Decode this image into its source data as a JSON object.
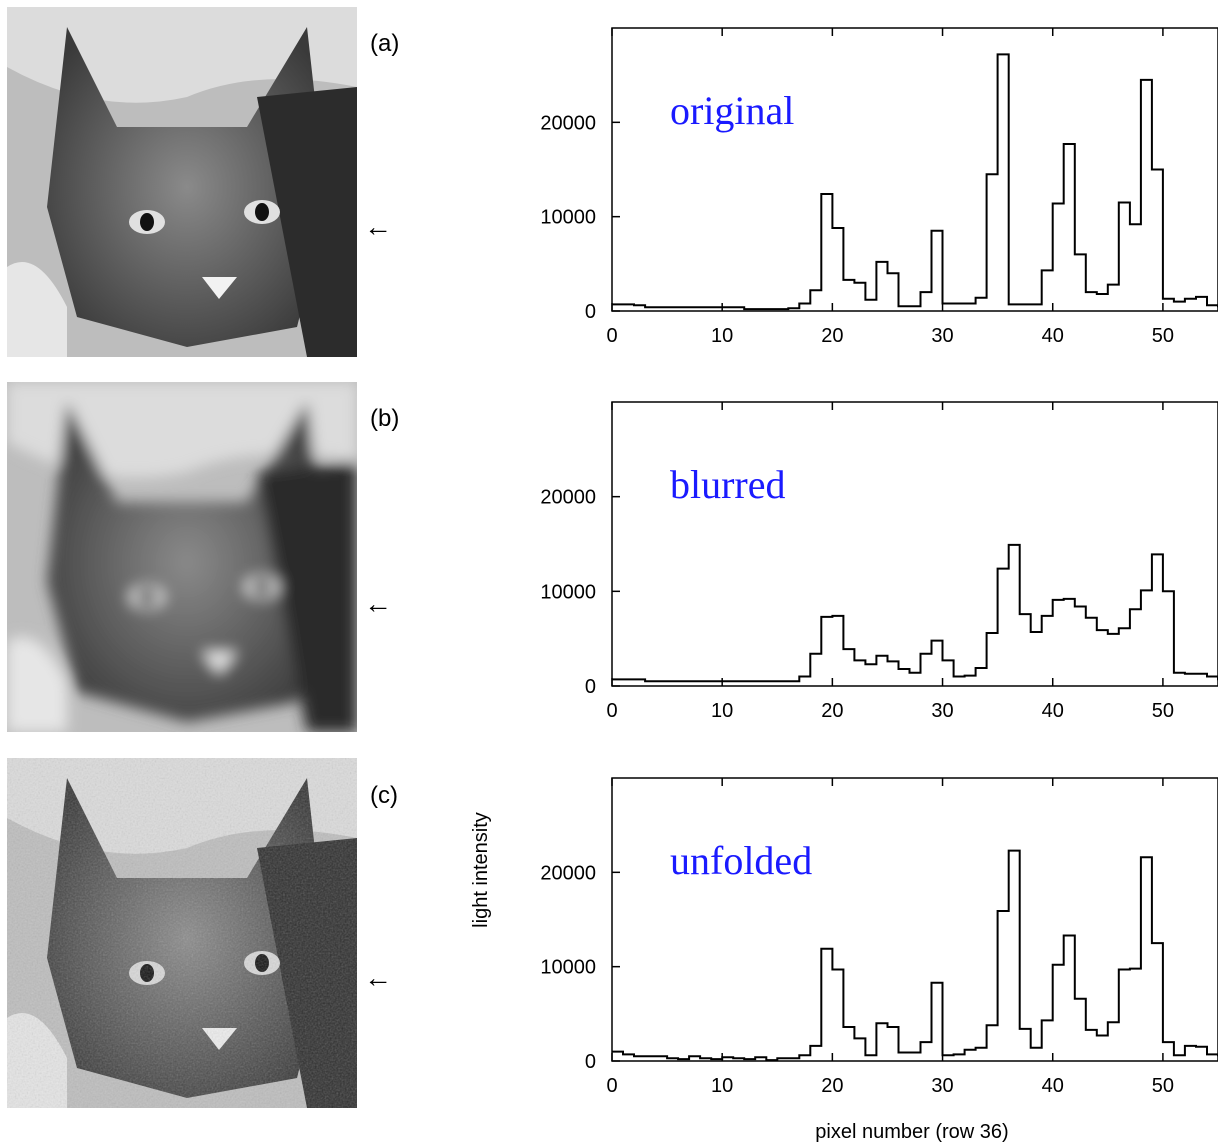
{
  "figure": {
    "ylabel": "light intensity",
    "xlabel": "pixel number (row 36)",
    "arrow_glyph": "←"
  },
  "chart_data": [
    {
      "type": "line",
      "step": true,
      "panel": "(a)",
      "annotation": "original",
      "x": [
        0,
        1,
        2,
        3,
        4,
        5,
        6,
        7,
        8,
        9,
        10,
        11,
        12,
        13,
        14,
        15,
        16,
        17,
        18,
        19,
        20,
        21,
        22,
        23,
        24,
        25,
        26,
        27,
        28,
        29,
        30,
        31,
        32,
        33,
        34,
        35,
        36,
        37,
        38,
        39,
        40,
        41,
        42,
        43,
        44,
        45,
        46,
        47,
        48,
        49,
        50,
        51,
        52,
        53,
        54,
        55
      ],
      "values": [
        700,
        700,
        600,
        400,
        400,
        400,
        400,
        400,
        400,
        400,
        400,
        400,
        200,
        200,
        200,
        200,
        300,
        800,
        2200,
        12400,
        8800,
        3300,
        3000,
        1200,
        5200,
        4000,
        500,
        500,
        2000,
        8500,
        800,
        800,
        800,
        1400,
        14500,
        27200,
        700,
        700,
        700,
        4300,
        11400,
        17700,
        6000,
        2000,
        1800,
        2800,
        11500,
        9200,
        24500,
        15000,
        1300,
        1000,
        1300,
        1500,
        600,
        400
      ],
      "xlim": [
        0,
        55
      ],
      "ylim": [
        0,
        30000
      ],
      "xticks": [
        "0",
        "10",
        "20",
        "30",
        "40",
        "50"
      ],
      "yticks": [
        "0",
        "10000",
        "20000"
      ]
    },
    {
      "type": "line",
      "step": true,
      "panel": "(b)",
      "annotation": "blurred",
      "x": [
        0,
        1,
        2,
        3,
        4,
        5,
        6,
        7,
        8,
        9,
        10,
        11,
        12,
        13,
        14,
        15,
        16,
        17,
        18,
        19,
        20,
        21,
        22,
        23,
        24,
        25,
        26,
        27,
        28,
        29,
        30,
        31,
        32,
        33,
        34,
        35,
        36,
        37,
        38,
        39,
        40,
        41,
        42,
        43,
        44,
        45,
        46,
        47,
        48,
        49,
        50,
        51,
        52,
        53,
        54,
        55
      ],
      "values": [
        700,
        700,
        700,
        500,
        500,
        500,
        500,
        500,
        500,
        500,
        500,
        500,
        500,
        500,
        500,
        500,
        500,
        1000,
        3400,
        7300,
        7400,
        3900,
        2700,
        2300,
        3200,
        2600,
        1800,
        1400,
        3400,
        4800,
        2700,
        1000,
        1100,
        1900,
        5600,
        12400,
        14900,
        7600,
        5700,
        7400,
        9100,
        9200,
        8400,
        7200,
        5900,
        5500,
        6100,
        8100,
        10100,
        13900,
        10000,
        1400,
        1300,
        1300,
        1000,
        600
      ],
      "xlim": [
        0,
        55
      ],
      "ylim": [
        0,
        30000
      ],
      "xticks": [
        "0",
        "10",
        "20",
        "30",
        "40",
        "50"
      ],
      "yticks": [
        "0",
        "10000",
        "20000"
      ]
    },
    {
      "type": "line",
      "step": true,
      "panel": "(c)",
      "annotation": "unfolded",
      "x": [
        0,
        1,
        2,
        3,
        4,
        5,
        6,
        7,
        8,
        9,
        10,
        11,
        12,
        13,
        14,
        15,
        16,
        17,
        18,
        19,
        20,
        21,
        22,
        23,
        24,
        25,
        26,
        27,
        28,
        29,
        30,
        31,
        32,
        33,
        34,
        35,
        36,
        37,
        38,
        39,
        40,
        41,
        42,
        43,
        44,
        45,
        46,
        47,
        48,
        49,
        50,
        51,
        52,
        53,
        54,
        55
      ],
      "values": [
        1000,
        700,
        500,
        500,
        500,
        300,
        200,
        500,
        300,
        200,
        400,
        300,
        200,
        400,
        100,
        300,
        300,
        600,
        1600,
        11900,
        9700,
        3600,
        2400,
        600,
        4000,
        3600,
        900,
        900,
        2000,
        8300,
        600,
        700,
        1200,
        1400,
        3800,
        15900,
        22300,
        3400,
        1400,
        4300,
        10200,
        13300,
        6600,
        3300,
        2700,
        4100,
        9700,
        9800,
        21600,
        12500,
        2000,
        600,
        1600,
        1500,
        700,
        500
      ],
      "xlim": [
        0,
        55
      ],
      "ylim": [
        0,
        30000
      ],
      "xticks": [
        "0",
        "10",
        "20",
        "30",
        "40",
        "50"
      ],
      "yticks": [
        "0",
        "10000",
        "20000"
      ]
    }
  ]
}
